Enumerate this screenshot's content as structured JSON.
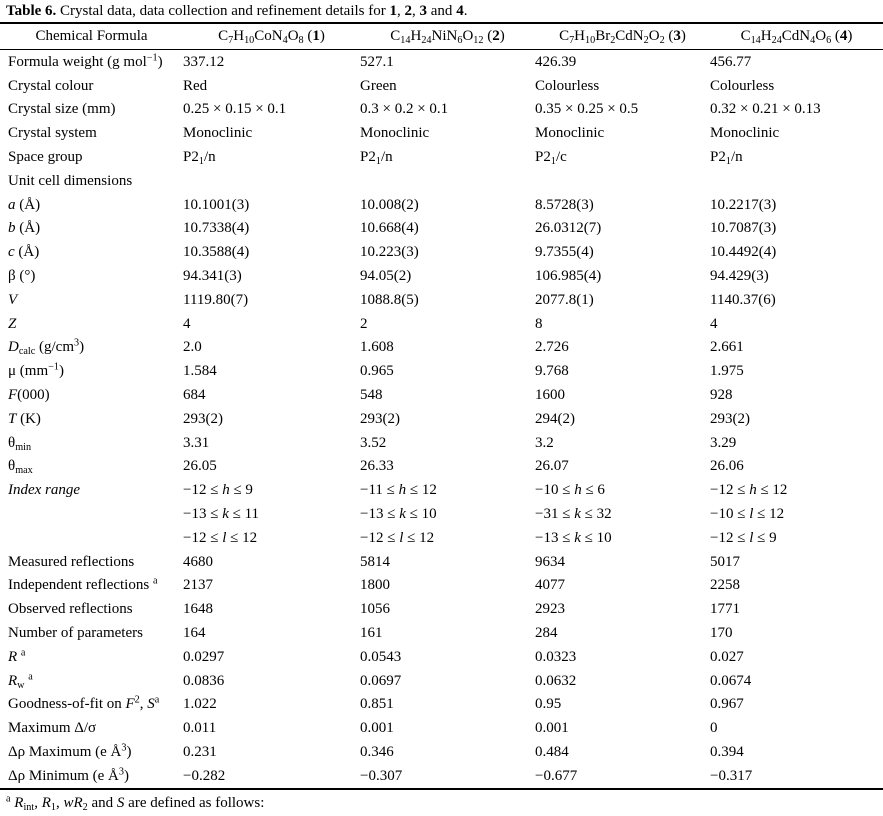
{
  "colors": {
    "background": "#ffffff",
    "text": "#000000",
    "rule": "#000000"
  },
  "title": "**Table 6.** Crystal data, data collection and refinement details for **1**, **2**, **3** and **4**.",
  "table": {
    "header": [
      "Chemical Formula",
      "C_7_H_10_CoN_4_O_8_ (**1**)",
      "C_14_H_24_NiN_6_O_12_ (**2**)",
      "C_7_H_10_Br_2_CdN_2_O_2_ (**3**)",
      "C_14_H_24_CdN_4_O_6_ (**4**)"
    ],
    "rows": [
      {
        "label": "Formula weight (g mol^−1^)",
        "values": [
          "337.12",
          "527.1",
          "426.39",
          "456.77"
        ]
      },
      {
        "label": "Crystal colour",
        "values": [
          "Red",
          "Green",
          "Colourless",
          "Colourless"
        ]
      },
      {
        "label": "Crystal size (mm)",
        "values": [
          "0.25 × 0.15 × 0.1",
          "0.3 × 0.2 × 0.1",
          "0.35 × 0.25 × 0.5",
          "0.32 × 0.21 × 0.13"
        ]
      },
      {
        "label": "Crystal system",
        "values": [
          "Monoclinic",
          "Monoclinic",
          "Monoclinic",
          "Monoclinic"
        ]
      },
      {
        "label": "Space group",
        "values": [
          "P2_1_/n",
          "P2_1_/n",
          "P2_1_/c",
          "P2_1_/n"
        ]
      },
      {
        "label": "Unit cell dimensions",
        "values": [
          "",
          "",
          "",
          ""
        ]
      },
      {
        "label": "*a* (Å)",
        "values": [
          "10.1001(3)",
          "10.008(2)",
          "8.5728(3)",
          "10.2217(3)"
        ]
      },
      {
        "label": "*b* (Å)",
        "values": [
          "10.7338(4)",
          "10.668(4)",
          "26.0312(7)",
          "10.7087(3)"
        ]
      },
      {
        "label": "*c* (Å)",
        "values": [
          "10.3588(4)",
          "10.223(3)",
          "9.7355(4)",
          "10.4492(4)"
        ]
      },
      {
        "label": "β (°)",
        "values": [
          "94.341(3)",
          "94.05(2)",
          "106.985(4)",
          "94.429(3)"
        ]
      },
      {
        "label": "*V*",
        "values": [
          "1119.80(7)",
          "1088.8(5)",
          "2077.8(1)",
          "1140.37(6)"
        ]
      },
      {
        "label": "*Z*",
        "values": [
          "4",
          "2",
          "8",
          "4"
        ]
      },
      {
        "label": "*D*_calc_ (g/cm^3^)",
        "values": [
          "2.0",
          "1.608",
          "2.726",
          "2.661"
        ]
      },
      {
        "label": "μ (mm^−1^)",
        "values": [
          "1.584",
          "0.965",
          "9.768",
          "1.975"
        ]
      },
      {
        "label": "*F*(000)",
        "values": [
          "684",
          "548",
          "1600",
          "928"
        ]
      },
      {
        "label": "*T* (K)",
        "values": [
          "293(2)",
          "293(2)",
          "294(2)",
          "293(2)"
        ]
      },
      {
        "label": "θ_min_",
        "values": [
          "3.31",
          "3.52",
          "3.2",
          "3.29"
        ]
      },
      {
        "label": "θ_max_",
        "values": [
          "26.05",
          "26.33",
          "26.07",
          "26.06"
        ]
      },
      {
        "label": "*Index range*",
        "values": [
          "−12 ≤ *h* ≤ 9",
          "−11 ≤ *h* ≤ 12",
          "−10 ≤ *h* ≤ 6",
          "−12 ≤ *h* ≤ 12"
        ]
      },
      {
        "label": "",
        "values": [
          "−13 ≤ *k* ≤ 11",
          "−13 ≤ *k* ≤ 10",
          "−31 ≤ *k* ≤ 32",
          "−10 ≤ *l* ≤ 12"
        ]
      },
      {
        "label": "",
        "values": [
          "−12 ≤ *l* ≤ 12",
          "−12 ≤ *l* ≤ 12",
          "−13 ≤ *k* ≤ 10",
          "−12 ≤ *l* ≤ 9"
        ]
      },
      {
        "label": "Measured reflections",
        "values": [
          "4680",
          "5814",
          "9634",
          "5017"
        ]
      },
      {
        "label": "Independent reflections ^a^",
        "values": [
          "2137",
          "1800",
          "4077",
          "2258"
        ]
      },
      {
        "label": "Observed reflections",
        "values": [
          "1648",
          "1056",
          "2923",
          "1771"
        ]
      },
      {
        "label": "Number of parameters",
        "values": [
          "164",
          "161",
          "284",
          "170"
        ]
      },
      {
        "label": "*R* ^a^",
        "values": [
          "0.0297",
          "0.0543",
          "0.0323",
          "0.027"
        ]
      },
      {
        "label": "*R*_w_ ^a^",
        "values": [
          "0.0836",
          "0.0697",
          "0.0632",
          "0.0674"
        ]
      },
      {
        "label": "Goodness-of-fit on *F*^2^, *S*^a^",
        "values": [
          "1.022",
          "0.851",
          "0.95",
          "0.967"
        ]
      },
      {
        "label": "Maximum Δ/σ",
        "values": [
          "0.011",
          "0.001",
          "0.001",
          "0"
        ]
      },
      {
        "label": "Δρ Maximum (e Å^3^)",
        "values": [
          "0.231",
          "0.346",
          "0.484",
          "0.394"
        ]
      },
      {
        "label": "Δρ Minimum (e Å^3^)",
        "values": [
          "−0.282",
          "−0.307",
          "−0.677",
          "−0.317"
        ]
      }
    ],
    "footnote": "^a^ *R*_int_, *R*_1_, *wR*_2_ and *S* are defined as follows:"
  }
}
